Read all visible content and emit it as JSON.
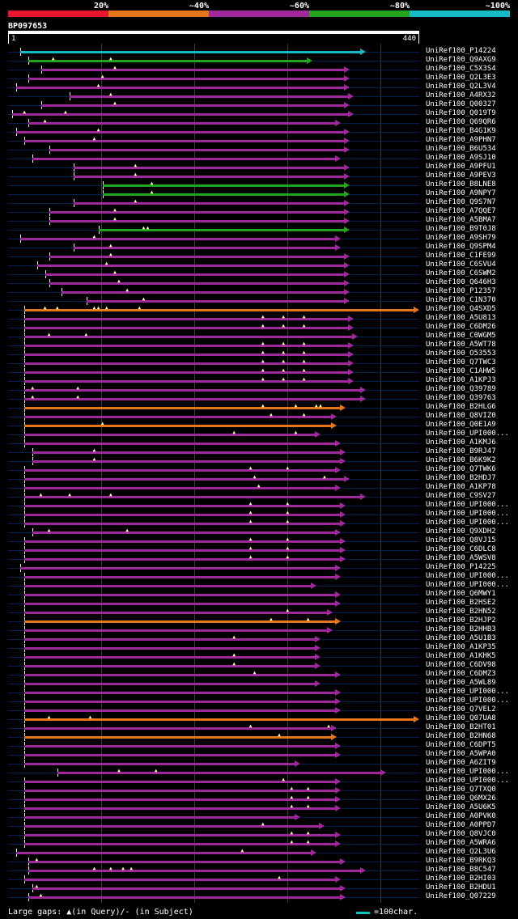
{
  "legend": {
    "labels": [
      "20%",
      "~40%",
      "~60%",
      "~80%",
      "~100%"
    ],
    "colors": [
      "#e8162c",
      "#e87518",
      "#a0289c",
      "#22a51c",
      "#18b8c4"
    ]
  },
  "query": {
    "id": "BP097653",
    "start": "1",
    "end": "440"
  },
  "hits": [
    {
      "id": "UniRef100_P14224",
      "c": 4,
      "s": 0.03,
      "e": 0.87,
      "g": []
    },
    {
      "id": "UniRef100_Q9AXG9",
      "c": 3,
      "s": 0.05,
      "e": 0.74,
      "g": [
        0.11,
        0.25
      ]
    },
    {
      "id": "UniRef100_C5X3S4",
      "c": 2,
      "s": 0.08,
      "e": 0.83,
      "g": [
        0.26
      ]
    },
    {
      "id": "UniRef100_Q2L3E3",
      "c": 2,
      "s": 0.05,
      "e": 0.83,
      "g": [
        0.23
      ]
    },
    {
      "id": "UniRef100_Q2L3V4",
      "c": 2,
      "s": 0.02,
      "e": 0.83,
      "g": [
        0.22
      ]
    },
    {
      "id": "UniRef100_A4RX32",
      "c": 2,
      "s": 0.15,
      "e": 0.84,
      "g": [
        0.25
      ]
    },
    {
      "id": "UniRef100_Q00327",
      "c": 2,
      "s": 0.08,
      "e": 0.83,
      "g": [
        0.26
      ]
    },
    {
      "id": "UniRef100_Q019T9",
      "c": 2,
      "s": 0.01,
      "e": 0.84,
      "g": [
        0.04,
        0.14
      ]
    },
    {
      "id": "UniRef100_Q69QR6",
      "c": 2,
      "s": 0.05,
      "e": 0.81,
      "g": [
        0.09
      ]
    },
    {
      "id": "UniRef100_B4G1K9",
      "c": 2,
      "s": 0.02,
      "e": 0.83,
      "g": [
        0.22
      ]
    },
    {
      "id": "UniRef100_A9PHN7",
      "c": 2,
      "s": 0.04,
      "e": 0.83,
      "g": [
        0.21
      ]
    },
    {
      "id": "UniRef100_B6U534",
      "c": 2,
      "s": 0.1,
      "e": 0.83,
      "g": []
    },
    {
      "id": "UniRef100_A9SJ10",
      "c": 2,
      "s": 0.06,
      "e": 0.81,
      "g": []
    },
    {
      "id": "UniRef100_A9PFU1",
      "c": 2,
      "s": 0.16,
      "e": 0.83,
      "g": [
        0.31
      ]
    },
    {
      "id": "UniRef100_A9PEV3",
      "c": 2,
      "s": 0.16,
      "e": 0.83,
      "g": [
        0.31
      ]
    },
    {
      "id": "UniRef100_B8LNE8",
      "c": 3,
      "s": 0.23,
      "e": 0.83,
      "g": [
        0.35
      ]
    },
    {
      "id": "UniRef100_A9NPY7",
      "c": 3,
      "s": 0.23,
      "e": 0.83,
      "g": [
        0.35
      ]
    },
    {
      "id": "UniRef100_Q9S7N7",
      "c": 2,
      "s": 0.16,
      "e": 0.83,
      "g": [
        0.31
      ]
    },
    {
      "id": "UniRef100_A7QQE7",
      "c": 2,
      "s": 0.1,
      "e": 0.83,
      "g": [
        0.26
      ]
    },
    {
      "id": "UniRef100_A5BMA7",
      "c": 2,
      "s": 0.1,
      "e": 0.83,
      "g": [
        0.26
      ]
    },
    {
      "id": "UniRef100_B9T0J8",
      "c": 3,
      "s": 0.22,
      "e": 0.83,
      "g": [
        0.33,
        0.34
      ]
    },
    {
      "id": "UniRef100_A9SH79",
      "c": 2,
      "s": 0.03,
      "e": 0.81,
      "g": [
        0.21
      ]
    },
    {
      "id": "UniRef100_Q9SPM4",
      "c": 2,
      "s": 0.16,
      "e": 0.81,
      "g": [
        0.25
      ]
    },
    {
      "id": "UniRef100_C1FE99",
      "c": 2,
      "s": 0.1,
      "e": 0.83,
      "g": [
        0.25
      ]
    },
    {
      "id": "UniRef100_C6SVU4",
      "c": 2,
      "s": 0.07,
      "e": 0.83,
      "g": [
        0.24
      ]
    },
    {
      "id": "UniRef100_C6SWM2",
      "c": 2,
      "s": 0.09,
      "e": 0.83,
      "g": [
        0.26
      ]
    },
    {
      "id": "UniRef100_Q646H3",
      "c": 2,
      "s": 0.1,
      "e": 0.83,
      "g": [
        0.27
      ]
    },
    {
      "id": "UniRef100_P12357",
      "c": 2,
      "s": 0.13,
      "e": 0.83,
      "g": [
        0.29
      ]
    },
    {
      "id": "UniRef100_C1N370",
      "c": 2,
      "s": 0.19,
      "e": 0.83,
      "g": [
        0.33
      ]
    },
    {
      "id": "UniRef100_Q4SXD5",
      "c": 1,
      "s": 0.04,
      "e": 1.0,
      "g": [
        0.09,
        0.12,
        0.21,
        0.22,
        0.24,
        0.32
      ]
    },
    {
      "id": "UniRef100_A5U813",
      "c": 2,
      "s": 0.04,
      "e": 0.84,
      "g": [
        0.62,
        0.67,
        0.72
      ]
    },
    {
      "id": "UniRef100_C6DM26",
      "c": 2,
      "s": 0.04,
      "e": 0.84,
      "g": [
        0.62,
        0.67,
        0.72
      ]
    },
    {
      "id": "UniRef100_C0WGM5",
      "c": 2,
      "s": 0.04,
      "e": 0.85,
      "g": [
        0.1,
        0.19
      ]
    },
    {
      "id": "UniRef100_A5WT78",
      "c": 2,
      "s": 0.04,
      "e": 0.84,
      "g": [
        0.62,
        0.67,
        0.72
      ]
    },
    {
      "id": "UniRef100_O53553",
      "c": 2,
      "s": 0.04,
      "e": 0.84,
      "g": [
        0.62,
        0.67,
        0.72
      ]
    },
    {
      "id": "UniRef100_Q7TWC3",
      "c": 2,
      "s": 0.04,
      "e": 0.84,
      "g": [
        0.62,
        0.67,
        0.72
      ]
    },
    {
      "id": "UniRef100_C1AHW5",
      "c": 2,
      "s": 0.04,
      "e": 0.84,
      "g": [
        0.62,
        0.67,
        0.72
      ]
    },
    {
      "id": "UniRef100_A1KPJ3",
      "c": 2,
      "s": 0.04,
      "e": 0.84,
      "g": [
        0.62,
        0.67,
        0.72
      ]
    },
    {
      "id": "UniRef100_Q39789",
      "c": 2,
      "s": 0.04,
      "e": 0.87,
      "g": [
        0.06,
        0.17
      ]
    },
    {
      "id": "UniRef100_Q39763",
      "c": 2,
      "s": 0.04,
      "e": 0.87,
      "g": [
        0.06,
        0.17
      ]
    },
    {
      "id": "UniRef100_B2HLG6",
      "c": 1,
      "s": 0.04,
      "e": 0.82,
      "g": [
        0.62,
        0.7,
        0.75,
        0.76
      ]
    },
    {
      "id": "UniRef100_Q8VIZ0",
      "c": 2,
      "s": 0.04,
      "e": 0.8,
      "g": [
        0.64,
        0.72
      ]
    },
    {
      "id": "UniRef100_Q0E1A9",
      "c": 1,
      "s": 0.04,
      "e": 0.8,
      "g": [
        0.23
      ]
    },
    {
      "id": "UniRef100_UPI000...",
      "c": 2,
      "s": 0.04,
      "e": 0.76,
      "g": [
        0.55,
        0.7
      ]
    },
    {
      "id": "UniRef100_A1KMJ6",
      "c": 2,
      "s": 0.04,
      "e": 0.81,
      "g": []
    },
    {
      "id": "UniRef100_B9RJ47",
      "c": 2,
      "s": 0.06,
      "e": 0.82,
      "g": [
        0.21
      ]
    },
    {
      "id": "UniRef100_B6K9K2",
      "c": 2,
      "s": 0.06,
      "e": 0.82,
      "g": [
        0.21
      ]
    },
    {
      "id": "UniRef100_Q7TWK6",
      "c": 2,
      "s": 0.04,
      "e": 0.81,
      "g": [
        0.59,
        0.68
      ]
    },
    {
      "id": "UniRef100_B2HDJ7",
      "c": 2,
      "s": 0.04,
      "e": 0.83,
      "g": [
        0.6,
        0.77
      ]
    },
    {
      "id": "UniRef100_A1KP78",
      "c": 2,
      "s": 0.04,
      "e": 0.81,
      "g": [
        0.61
      ]
    },
    {
      "id": "UniRef100_C9SV27",
      "c": 2,
      "s": 0.04,
      "e": 0.87,
      "g": [
        0.08,
        0.15,
        0.25
      ]
    },
    {
      "id": "UniRef100_UPI000...",
      "c": 2,
      "s": 0.04,
      "e": 0.82,
      "g": [
        0.59,
        0.68
      ]
    },
    {
      "id": "UniRef100_UPI000...",
      "c": 2,
      "s": 0.04,
      "e": 0.82,
      "g": [
        0.59,
        0.68
      ]
    },
    {
      "id": "UniRef100_UPI000...",
      "c": 2,
      "s": 0.04,
      "e": 0.82,
      "g": [
        0.59,
        0.68
      ]
    },
    {
      "id": "UniRef100_Q9XDH2",
      "c": 2,
      "s": 0.06,
      "e": 0.81,
      "g": [
        0.1,
        0.29
      ]
    },
    {
      "id": "UniRef100_Q8VJ15",
      "c": 2,
      "s": 0.04,
      "e": 0.82,
      "g": [
        0.59,
        0.68
      ]
    },
    {
      "id": "UniRef100_C6DLC8",
      "c": 2,
      "s": 0.04,
      "e": 0.82,
      "g": [
        0.59,
        0.68
      ]
    },
    {
      "id": "UniRef100_A5WSV8",
      "c": 2,
      "s": 0.04,
      "e": 0.82,
      "g": [
        0.59,
        0.68
      ]
    },
    {
      "id": "UniRef100_P14225",
      "c": 2,
      "s": 0.03,
      "e": 0.81,
      "g": []
    },
    {
      "id": "UniRef100_UPI000...",
      "c": 2,
      "s": 0.04,
      "e": 0.81,
      "g": []
    },
    {
      "id": "UniRef100_UPI000...",
      "c": 2,
      "s": 0.04,
      "e": 0.75,
      "g": []
    },
    {
      "id": "UniRef100_Q6MWY1",
      "c": 2,
      "s": 0.04,
      "e": 0.81,
      "g": []
    },
    {
      "id": "UniRef100_B2HSE2",
      "c": 2,
      "s": 0.04,
      "e": 0.81,
      "g": []
    },
    {
      "id": "UniRef100_B2HN52",
      "c": 2,
      "s": 0.04,
      "e": 0.79,
      "g": [
        0.68
      ]
    },
    {
      "id": "UniRef100_B2HJP2",
      "c": 1,
      "s": 0.04,
      "e": 0.81,
      "g": [
        0.64,
        0.73
      ]
    },
    {
      "id": "UniRef100_B2HHB3",
      "c": 2,
      "s": 0.04,
      "e": 0.79,
      "g": []
    },
    {
      "id": "UniRef100_A5U1B3",
      "c": 2,
      "s": 0.04,
      "e": 0.76,
      "g": [
        0.55
      ]
    },
    {
      "id": "UniRef100_A1KP35",
      "c": 2,
      "s": 0.04,
      "e": 0.76,
      "g": []
    },
    {
      "id": "UniRef100_A1KHK5",
      "c": 2,
      "s": 0.04,
      "e": 0.76,
      "g": [
        0.55
      ]
    },
    {
      "id": "UniRef100_C6DV98",
      "c": 2,
      "s": 0.04,
      "e": 0.76,
      "g": [
        0.55
      ]
    },
    {
      "id": "UniRef100_C6DMZ3",
      "c": 2,
      "s": 0.04,
      "e": 0.81,
      "g": [
        0.6
      ]
    },
    {
      "id": "UniRef100_A5WL89",
      "c": 2,
      "s": 0.04,
      "e": 0.76,
      "g": []
    },
    {
      "id": "UniRef100_UPI000...",
      "c": 2,
      "s": 0.04,
      "e": 0.81,
      "g": []
    },
    {
      "id": "UniRef100_UPI000...",
      "c": 2,
      "s": 0.04,
      "e": 0.81,
      "g": []
    },
    {
      "id": "UniRef100_Q7VEL2",
      "c": 2,
      "s": 0.04,
      "e": 0.81,
      "g": []
    },
    {
      "id": "UniRef100_Q07UA8",
      "c": 1,
      "s": 0.04,
      "e": 1.0,
      "g": [
        0.1,
        0.2
      ]
    },
    {
      "id": "UniRef100_B2HT01",
      "c": 2,
      "s": 0.04,
      "e": 0.8,
      "g": [
        0.59,
        0.78
      ]
    },
    {
      "id": "UniRef100_B2HN68",
      "c": 1,
      "s": 0.04,
      "e": 0.8,
      "g": [
        0.66
      ]
    },
    {
      "id": "UniRef100_C6DPT5",
      "c": 2,
      "s": 0.04,
      "e": 0.81,
      "g": []
    },
    {
      "id": "UniRef100_A5WPA0",
      "c": 2,
      "s": 0.04,
      "e": 0.81,
      "g": []
    },
    {
      "id": "UniRef100_A6ZIT9",
      "c": 2,
      "s": 0.04,
      "e": 0.71,
      "g": []
    },
    {
      "id": "UniRef100_UPI000...",
      "c": 2,
      "s": 0.12,
      "e": 0.92,
      "g": [
        0.27,
        0.36
      ]
    },
    {
      "id": "UniRef100_UPI000...",
      "c": 2,
      "s": 0.04,
      "e": 0.81,
      "g": [
        0.67
      ]
    },
    {
      "id": "UniRef100_Q7TXQ0",
      "c": 2,
      "s": 0.04,
      "e": 0.81,
      "g": [
        0.69,
        0.73
      ]
    },
    {
      "id": "UniRef100_Q6MX26",
      "c": 2,
      "s": 0.04,
      "e": 0.81,
      "g": [
        0.69,
        0.73
      ]
    },
    {
      "id": "UniRef100_A5U6K5",
      "c": 2,
      "s": 0.04,
      "e": 0.81,
      "g": [
        0.69,
        0.73
      ]
    },
    {
      "id": "UniRef100_A0PVK0",
      "c": 2,
      "s": 0.04,
      "e": 0.71,
      "g": []
    },
    {
      "id": "UniRef100_A0PPD7",
      "c": 2,
      "s": 0.04,
      "e": 0.77,
      "g": [
        0.62
      ]
    },
    {
      "id": "UniRef100_Q8VJC0",
      "c": 2,
      "s": 0.04,
      "e": 0.81,
      "g": [
        0.69,
        0.73
      ]
    },
    {
      "id": "UniRef100_A5WRA6",
      "c": 2,
      "s": 0.04,
      "e": 0.81,
      "g": [
        0.69,
        0.73
      ]
    },
    {
      "id": "UniRef100_Q2L3U6",
      "c": 2,
      "s": 0.02,
      "e": 0.75,
      "g": [
        0.57
      ]
    },
    {
      "id": "UniRef100_B9RKQ3",
      "c": 2,
      "s": 0.05,
      "e": 0.82,
      "g": [
        0.07
      ]
    },
    {
      "id": "UniRef100_B8C547",
      "c": 2,
      "s": 0.05,
      "e": 0.87,
      "g": [
        0.21,
        0.25,
        0.28,
        0.3
      ]
    },
    {
      "id": "UniRef100_B2HI03",
      "c": 2,
      "s": 0.04,
      "e": 0.81,
      "g": [
        0.66
      ]
    },
    {
      "id": "UniRef100_B2HDU1",
      "c": 2,
      "s": 0.06,
      "e": 0.82,
      "g": [
        0.07
      ]
    },
    {
      "id": "UniRef100_Q07229",
      "c": 2,
      "s": 0.05,
      "e": 0.82,
      "g": [
        0.08
      ]
    }
  ],
  "footer": {
    "gaps_text": "Large gaps: ▲(in Query)/- (in Subject)",
    "scale_text": "=100char."
  }
}
